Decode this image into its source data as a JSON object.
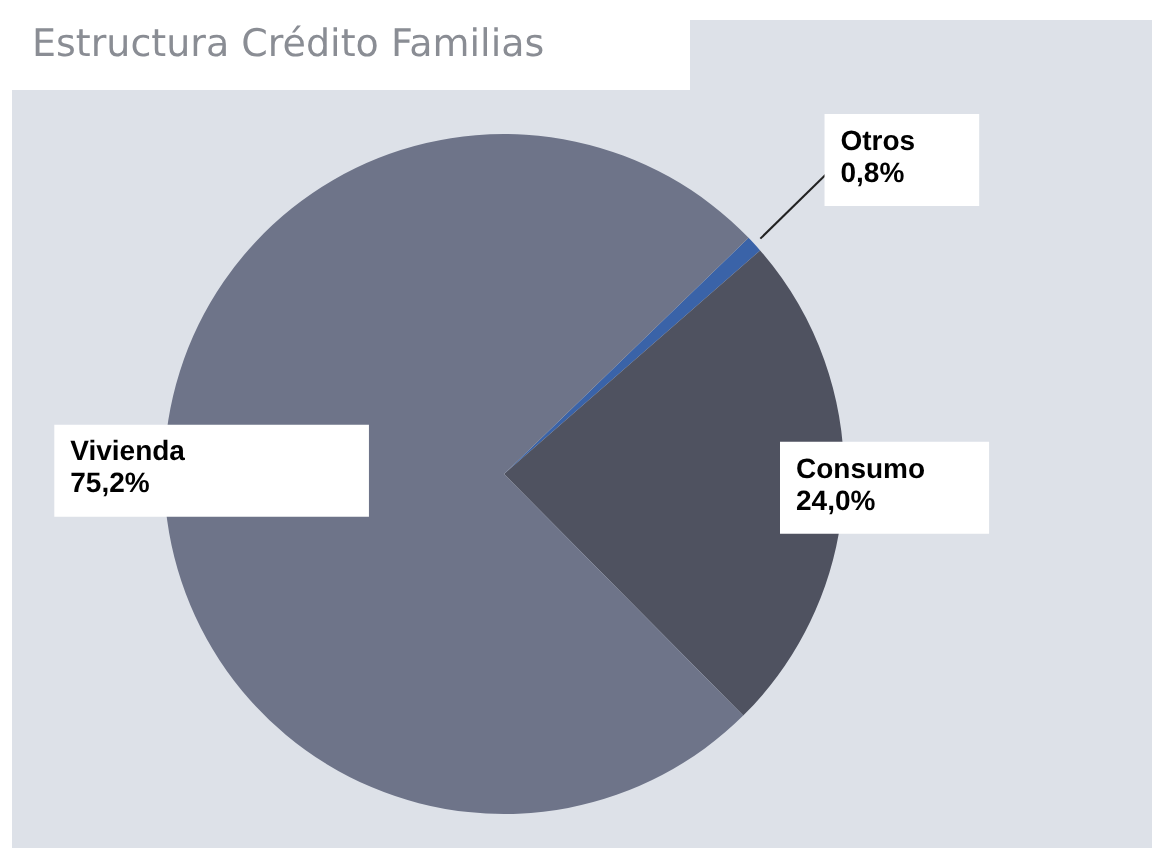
{
  "chart_data": {
    "type": "pie",
    "title": "Estructura Crédito Familias",
    "categories": [
      "Otros",
      "Consumo",
      "Vivienda"
    ],
    "values": [
      0.8,
      24.0,
      75.2
    ],
    "value_labels": [
      "0,8%",
      "24,0%",
      "75,2%"
    ],
    "colors": [
      "#3a63a8",
      "#4f5260",
      "#6e7489"
    ],
    "legend": false
  }
}
